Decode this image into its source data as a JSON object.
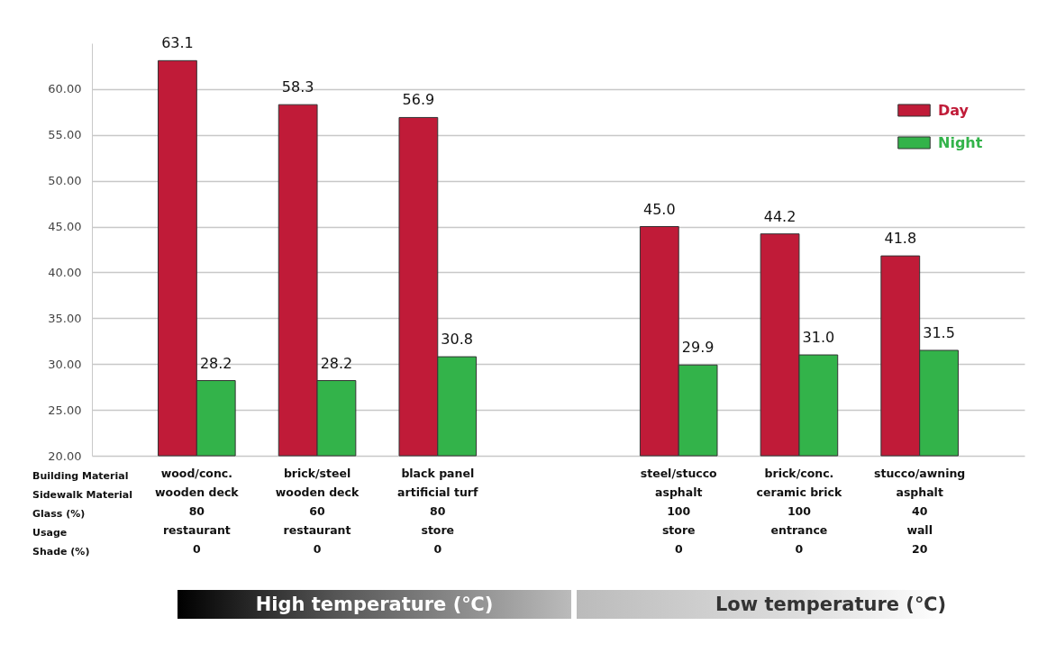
{
  "chart_data": {
    "type": "bar",
    "categories": [
      "wood/conc.\nwooden deck\n80\nrestaurant\n0",
      "brick/steel\nwooden deck\n60\nrestaurant\n0",
      "black panel\nartificial turf\n80\nstore\n0",
      null,
      "steel/stucco\nasphalt\n100\nstore\n0",
      "brick/conc.\nceramic brick\n100\nentrance\n0",
      "stucco/awning\nasphalt\n40\nwall\n20"
    ],
    "series": [
      {
        "name": "Day",
        "color": "#c01b38",
        "values": [
          63.1,
          58.3,
          56.9,
          null,
          45.0,
          44.2,
          41.8
        ],
        "value_labels": [
          "63.1",
          "58.3",
          "56.9",
          null,
          "45.0",
          "44.2",
          "41.8"
        ]
      },
      {
        "name": "Night",
        "color": "#33b34a",
        "values": [
          28.2,
          28.2,
          30.8,
          null,
          29.9,
          31.0,
          31.5
        ],
        "value_labels": [
          "28.2",
          "28.2",
          "30.8",
          null,
          "29.9",
          "31.0",
          "31.5"
        ]
      }
    ],
    "ylim": [
      20,
      65
    ],
    "yticks": [
      {
        "value": 20,
        "label": "20.00"
      },
      {
        "value": 25,
        "label": "25.00"
      },
      {
        "value": 30,
        "label": "30.00"
      },
      {
        "value": 35,
        "label": "35.00"
      },
      {
        "value": 40,
        "label": "40.00"
      },
      {
        "value": 45,
        "label": "45.00"
      },
      {
        "value": 50,
        "label": "50.00"
      },
      {
        "value": 55,
        "label": "55.00"
      },
      {
        "value": 60,
        "label": "60.00"
      }
    ],
    "grid": "y",
    "legend": "top right",
    "annotations": [
      "Building Material",
      "Sidewalk Material",
      "Glass (%)",
      "Usage",
      "Shade (%)",
      "High temperature (℃)",
      "Low temperature (℃)"
    ]
  }
}
